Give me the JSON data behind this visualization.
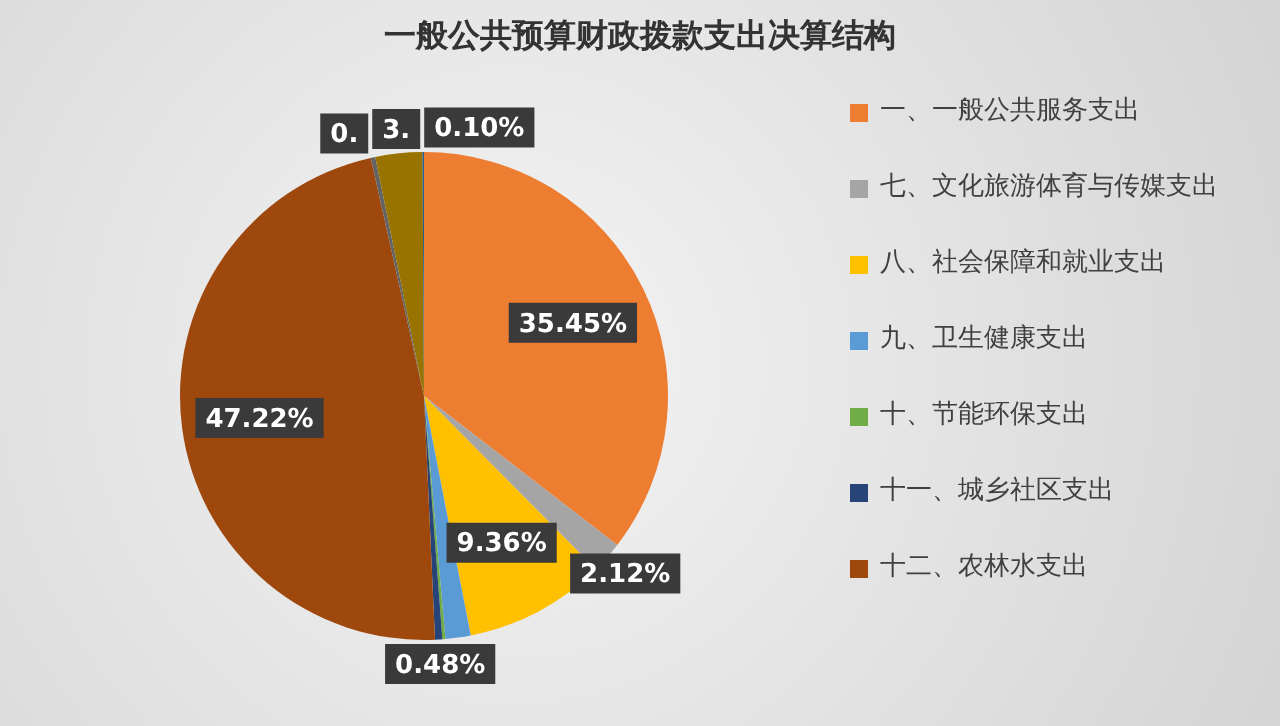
{
  "chart_data": {
    "type": "pie",
    "title": "一般公共预算财政拨款支出决算结构",
    "categories": [
      "一、一般公共服务支出",
      "七、文化旅游体育与传媒支出",
      "八、社会保障和就业支出",
      "九、卫生健康支出",
      "十、节能环保支出",
      "十一、城乡社区支出",
      "十二、农林水支出",
      null,
      null,
      null
    ],
    "values": [
      35.45,
      2.12,
      9.36,
      1.67,
      0.2,
      0.48,
      47.22,
      0.3,
      3.1,
      0.1
    ],
    "colors": [
      "#ed7d31",
      "#a5a5a5",
      "#ffc000",
      "#5b9bd5",
      "#70ad47",
      "#264478",
      "#9e480e",
      "#636363",
      "#997300",
      "#255e91"
    ],
    "value_labels": [
      "35.45%",
      "2.12%",
      "9.36%",
      null,
      null,
      "0.48%",
      "47.22%",
      "0.",
      "3.",
      "0.10%"
    ],
    "legend": "right"
  }
}
